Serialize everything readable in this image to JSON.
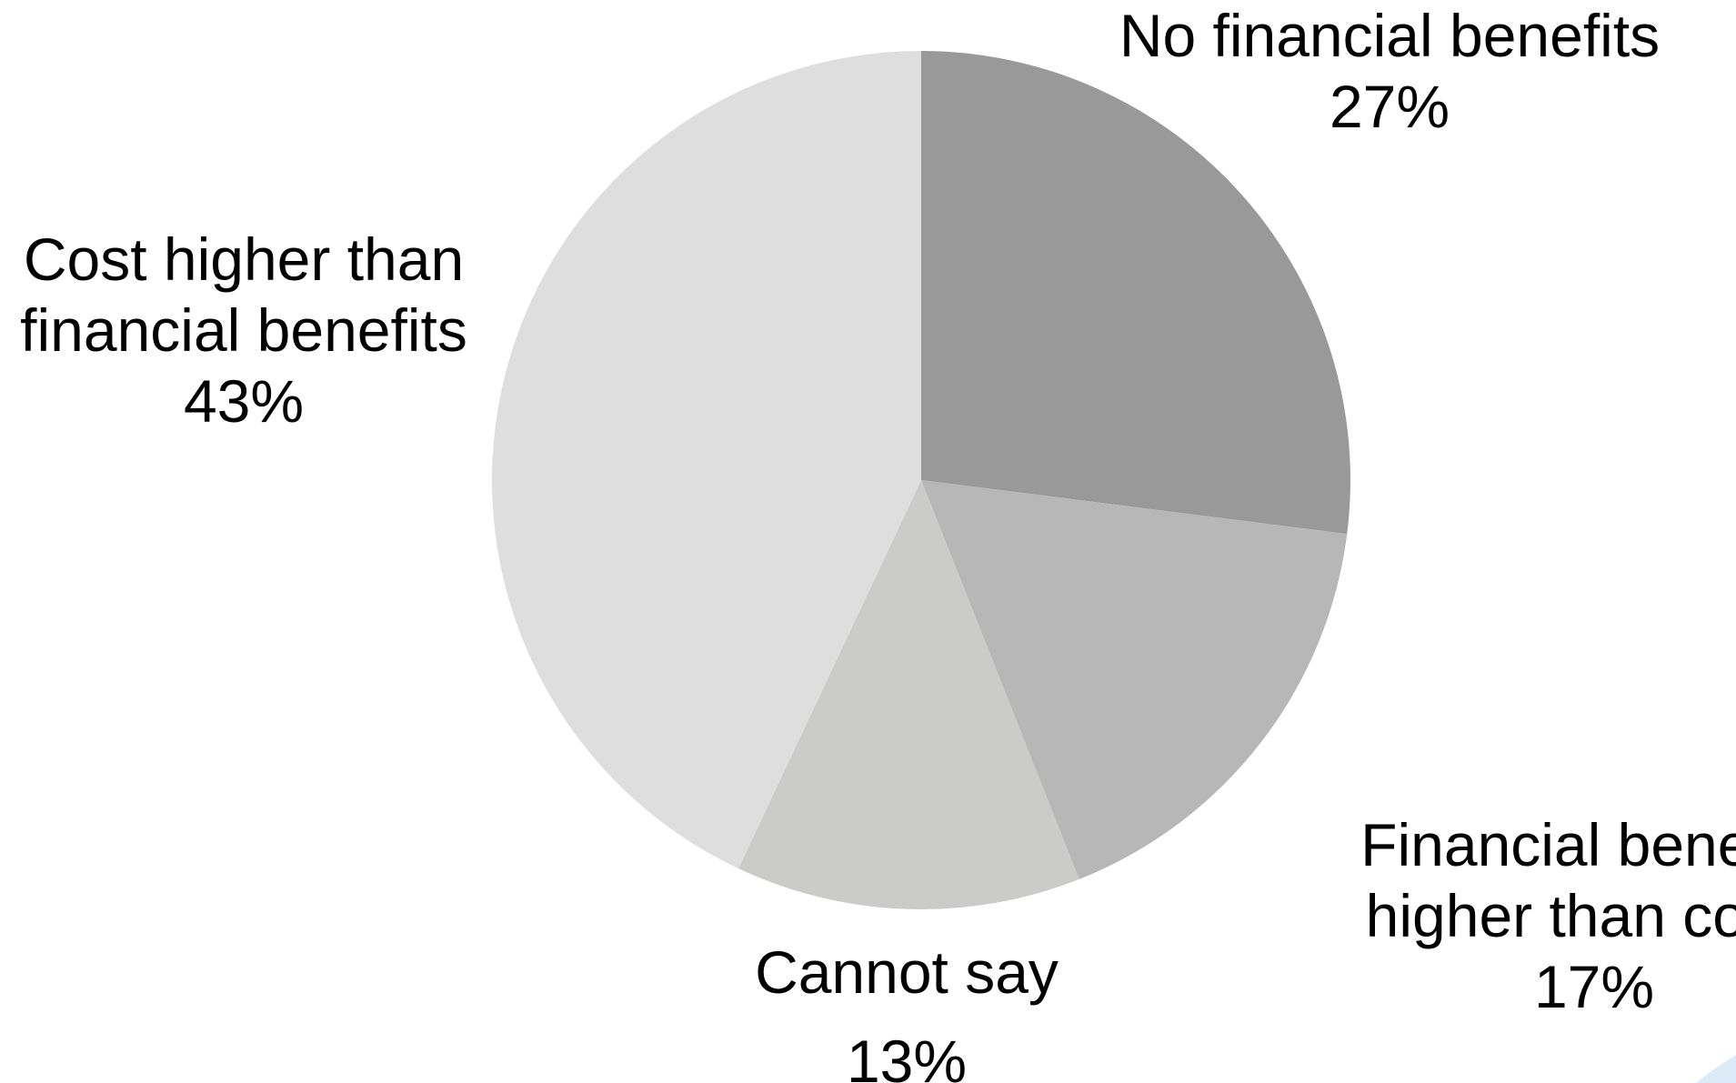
{
  "chart_data": {
    "type": "pie",
    "title": "",
    "start_angle_deg": 0,
    "direction": "clockwise",
    "slices": [
      {
        "name": "No financial benefits",
        "label_lines": [
          "No financial benefits"
        ],
        "value": 27,
        "value_label": "27%",
        "color": "#999999"
      },
      {
        "name": "Financial benefits higher than costs",
        "label_lines": [
          "Financial benefits",
          "higher than costs"
        ],
        "value": 17,
        "value_label": "17%",
        "color": "#b7b7b7"
      },
      {
        "name": "Cannot say",
        "label_lines": [
          "Cannot say"
        ],
        "value": 13,
        "value_label": "13%",
        "color": "#cbcbc9"
      },
      {
        "name": "Cost higher than financial benefits",
        "label_lines": [
          "Cost higher than",
          "financial benefits"
        ],
        "value": 43,
        "value_label": "43%",
        "color": "#dedede"
      }
    ],
    "legend": "none"
  },
  "colors": {
    "background": "#ffffff",
    "text": "#000000",
    "corner_accent": "#dceaf7"
  }
}
